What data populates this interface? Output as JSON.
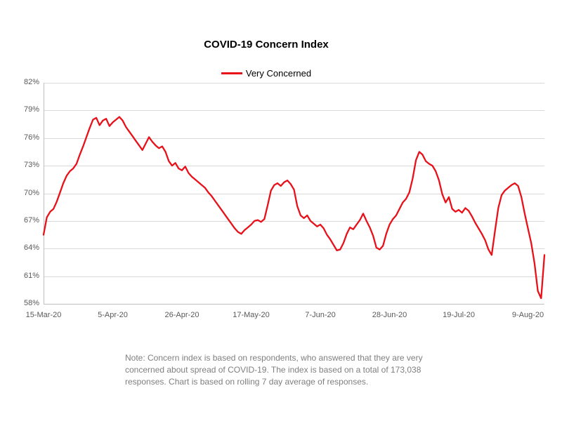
{
  "title": "COVID-19 Concern Index",
  "legend": {
    "label": "Very Concerned"
  },
  "colors": {
    "line": "#e8111a",
    "grid": "#d9d9d9",
    "axis": "#bfbfbf",
    "tick_text": "#595959",
    "note_text": "#7f7f7f"
  },
  "note_lines": [
    "Note: Concern index is based on respondents, who answered that they are very",
    "concerned about spread of COVID-19. The index is based on a total of 173,038",
    "responses. Chart is based on rolling 7 day average of responses."
  ],
  "chart_data": {
    "type": "line",
    "title": "COVID-19 Concern Index",
    "legend_position": "top",
    "grid": "horizontal",
    "ylim": [
      58,
      82
    ],
    "y_tick_step": 3,
    "y_tick_labels": [
      "58%",
      "61%",
      "64%",
      "67%",
      "70%",
      "73%",
      "76%",
      "79%",
      "82%"
    ],
    "x_unit": "day (rolling 7 day average)",
    "x_tick_labels": [
      "15-Mar-20",
      "5-Apr-20",
      "26-Apr-20",
      "17-May-20",
      "7-Jun-20",
      "28-Jun-20",
      "19-Jul-20",
      "9-Aug-20"
    ],
    "x_tick_positions": [
      0,
      21,
      42,
      63,
      84,
      105,
      126,
      147
    ],
    "series": [
      {
        "name": "Very Concerned",
        "unit": "%",
        "values": [
          65.5,
          67.4,
          68.0,
          68.3,
          69.1,
          70.1,
          71.1,
          71.9,
          72.4,
          72.7,
          73.2,
          74.2,
          75.1,
          76.1,
          77.1,
          78.0,
          78.2,
          77.4,
          77.9,
          78.1,
          77.3,
          77.7,
          78.0,
          78.3,
          77.9,
          77.2,
          76.7,
          76.2,
          75.7,
          75.2,
          74.7,
          75.4,
          76.1,
          75.6,
          75.2,
          74.9,
          75.1,
          74.5,
          73.5,
          73.0,
          73.3,
          72.7,
          72.5,
          72.9,
          72.2,
          71.8,
          71.5,
          71.2,
          70.9,
          70.6,
          70.1,
          69.7,
          69.2,
          68.7,
          68.2,
          67.7,
          67.2,
          66.7,
          66.2,
          65.8,
          65.6,
          66.0,
          66.3,
          66.6,
          67.0,
          67.1,
          66.9,
          67.2,
          68.7,
          70.3,
          70.9,
          71.1,
          70.8,
          71.2,
          71.4,
          71.0,
          70.4,
          68.6,
          67.6,
          67.3,
          67.6,
          67.0,
          66.7,
          66.4,
          66.6,
          66.2,
          65.5,
          65.0,
          64.4,
          63.8,
          63.9,
          64.6,
          65.6,
          66.3,
          66.1,
          66.6,
          67.1,
          67.8,
          67.0,
          66.3,
          65.4,
          64.1,
          63.9,
          64.3,
          65.6,
          66.6,
          67.2,
          67.6,
          68.3,
          69.0,
          69.4,
          70.1,
          71.6,
          73.6,
          74.5,
          74.2,
          73.5,
          73.2,
          73.0,
          72.4,
          71.4,
          69.9,
          69.0,
          69.6,
          68.3,
          68.0,
          68.2,
          67.9,
          68.4,
          68.1,
          67.5,
          66.8,
          66.2,
          65.6,
          64.9,
          63.9,
          63.3,
          65.9,
          68.4,
          69.8,
          70.3,
          70.6,
          70.9,
          71.1,
          70.8,
          69.6,
          67.8,
          66.2,
          64.6,
          62.4,
          59.4,
          58.6,
          63.3
        ]
      }
    ]
  }
}
